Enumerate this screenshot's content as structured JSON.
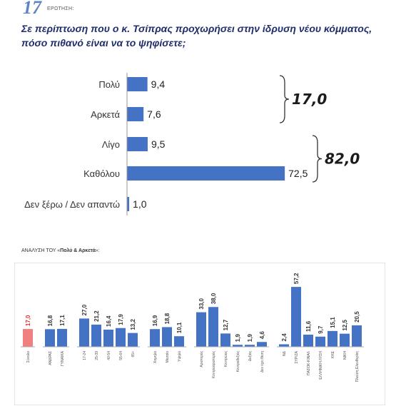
{
  "header": {
    "question_number": "17",
    "question_label": "ΕΡΩΤΗΣΗ:",
    "question_text": "Σε περίπτωση που ο κ. Τσίπρας προχωρήσει στην ίδρυση νέου κόμματος, πόσο πιθανό είναι να το ψηφίσετε;"
  },
  "colors": {
    "bar": "#4472c4",
    "total_bar": "#f08080",
    "total_value": "#e03030",
    "question": "#1f2e6b"
  },
  "chart_data": [
    {
      "type": "bar",
      "orientation": "horizontal",
      "categories": [
        "Πολύ",
        "Αρκετά",
        "Λίγο",
        "Καθόλου",
        "Δεν ξέρω / Δεν απαντώ"
      ],
      "values": [
        9.4,
        7.6,
        9.5,
        72.5,
        1.0
      ],
      "value_labels": [
        "9,4",
        "7,6",
        "9,5",
        "72,5",
        "1,0"
      ],
      "xlim": [
        0,
        100
      ],
      "annotations": [
        {
          "label": "17,0",
          "spans": [
            "Πολύ",
            "Αρκετά"
          ]
        },
        {
          "label": "82,0",
          "spans": [
            "Λίγο",
            "Καθόλου"
          ]
        }
      ]
    },
    {
      "type": "bar",
      "title_prefix": "ΑΝΑΛΥΣΗ ΤΟΥ «",
      "title_bold": "Πολύ & Αρκετά",
      "title_suffix": "»:",
      "ylim": [
        0,
        60
      ],
      "groups": [
        {
          "items": [
            {
              "label": "Σύνολο",
              "value": 17.0,
              "display": "17,0",
              "highlight": true
            }
          ]
        },
        {
          "items": [
            {
              "label": "ΑΝΔΡΑΣ",
              "value": 16.8,
              "display": "16,8"
            },
            {
              "label": "ΓΥΝΑΙΚΑ",
              "value": 17.1,
              "display": "17,1"
            }
          ]
        },
        {
          "items": [
            {
              "label": "17-24",
              "value": 27.0,
              "display": "27,0"
            },
            {
              "label": "25-39",
              "value": 21.2,
              "display": "21,2"
            },
            {
              "label": "40-54",
              "value": 16.4,
              "display": "16,4"
            },
            {
              "label": "55-64",
              "value": 17.9,
              "display": "17,9"
            },
            {
              "label": "65+",
              "value": 13.2,
              "display": "13,2"
            }
          ]
        },
        {
          "items": [
            {
              "label": "Χαμηλό",
              "value": 16.9,
              "display": "16,9"
            },
            {
              "label": "Μεσαίο",
              "value": 18.8,
              "display": "18,8"
            },
            {
              "label": "Υψηλό",
              "value": 10.1,
              "display": "10,1"
            }
          ]
        },
        {
          "items": [
            {
              "label": "Αριστερός",
              "value": 33.0,
              "display": "33,0"
            },
            {
              "label": "Κεντροαριστερός",
              "value": 38.0,
              "display": "38,0"
            },
            {
              "label": "Κεντρώος",
              "value": 12.7,
              "display": "12,7"
            },
            {
              "label": "Κεντροδεξιός",
              "value": 1.9,
              "display": "1,9"
            },
            {
              "label": "Δεξιός",
              "value": 1.9,
              "display": "1,9"
            },
            {
              "label": "Δεν έχει θέση",
              "value": 4.6,
              "display": "4,6"
            }
          ]
        },
        {
          "items": [
            {
              "label": "ΝΔ",
              "value": 2.4,
              "display": "2,4"
            },
            {
              "label": "ΣΥΡΙΖΑ",
              "value": 57.2,
              "display": "57,2"
            },
            {
              "label": "ΠΑΣΟΚ-ΚΙΝΑΛ",
              "value": 11.6,
              "display": "11,6"
            },
            {
              "label": "ΕΛΛΗΝΙΚΗ ΛΥΣΗ",
              "value": 9.7,
              "display": "9,7"
            },
            {
              "label": "ΚΚΕ",
              "value": 15.1,
              "display": "15,1"
            },
            {
              "label": "ΝΙΚΗ",
              "value": 12.5,
              "display": "12,5"
            },
            {
              "label": "Πλεύση Ελευθερίας",
              "value": 20.5,
              "display": "20,5"
            }
          ]
        }
      ]
    }
  ]
}
